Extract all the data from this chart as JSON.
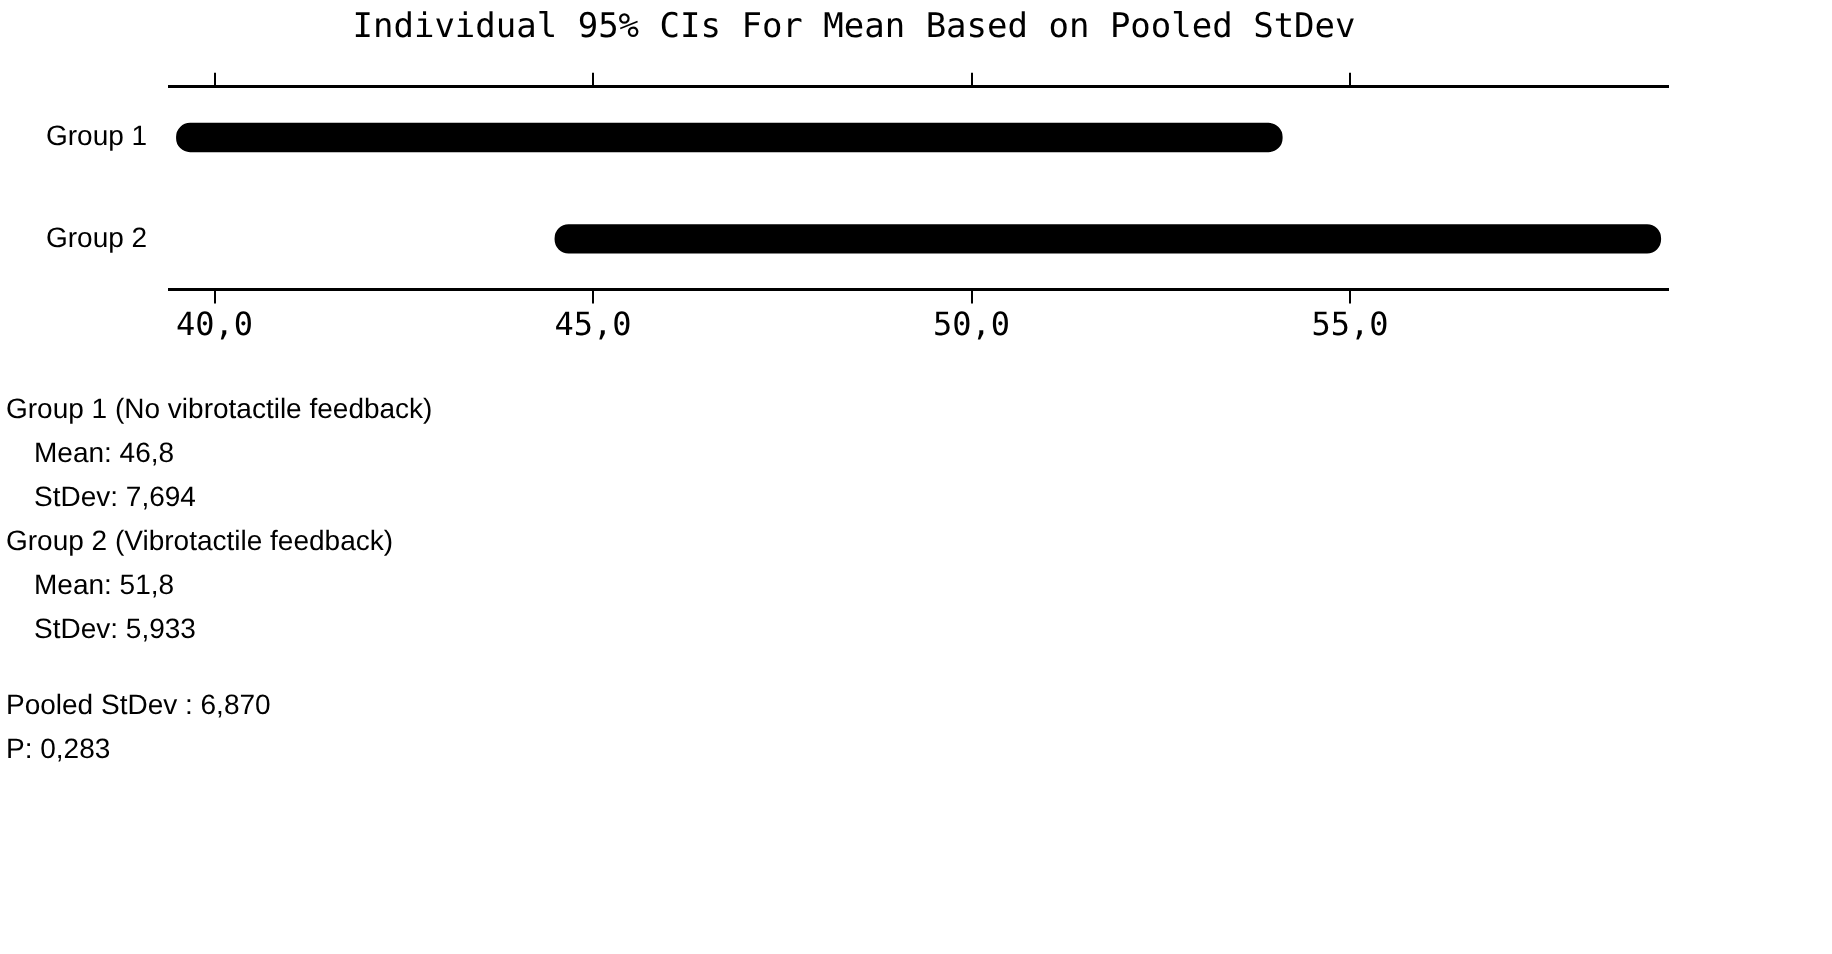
{
  "chart_data": {
    "type": "bar",
    "orientation": "horizontal",
    "title": "Individual 95% CIs For Mean Based on Pooled StDev",
    "categories": [
      "Group 1",
      "Group 2"
    ],
    "base": [
      39.5,
      44.5
    ],
    "values": [
      14.6,
      14.6
    ],
    "color": "#000000",
    "xlim": [
      39.4,
      59.2
    ],
    "xticks": [
      {
        "value": 40,
        "label": "40,0"
      },
      {
        "value": 45,
        "label": "45,0"
      },
      {
        "value": 50,
        "label": "50,0"
      },
      {
        "value": 55,
        "label": "55,0"
      }
    ],
    "grid": false,
    "legend": false,
    "annotations": [
      "Group 1 (No vibrotactile feedback)",
      "Mean: 46,8",
      "StDev: 7,694",
      "Group 2 (Vibrotactile feedback)",
      "Mean: 51,8",
      "StDev: 5,933",
      "Pooled StDev : 6,870",
      "P: 0,283"
    ]
  }
}
